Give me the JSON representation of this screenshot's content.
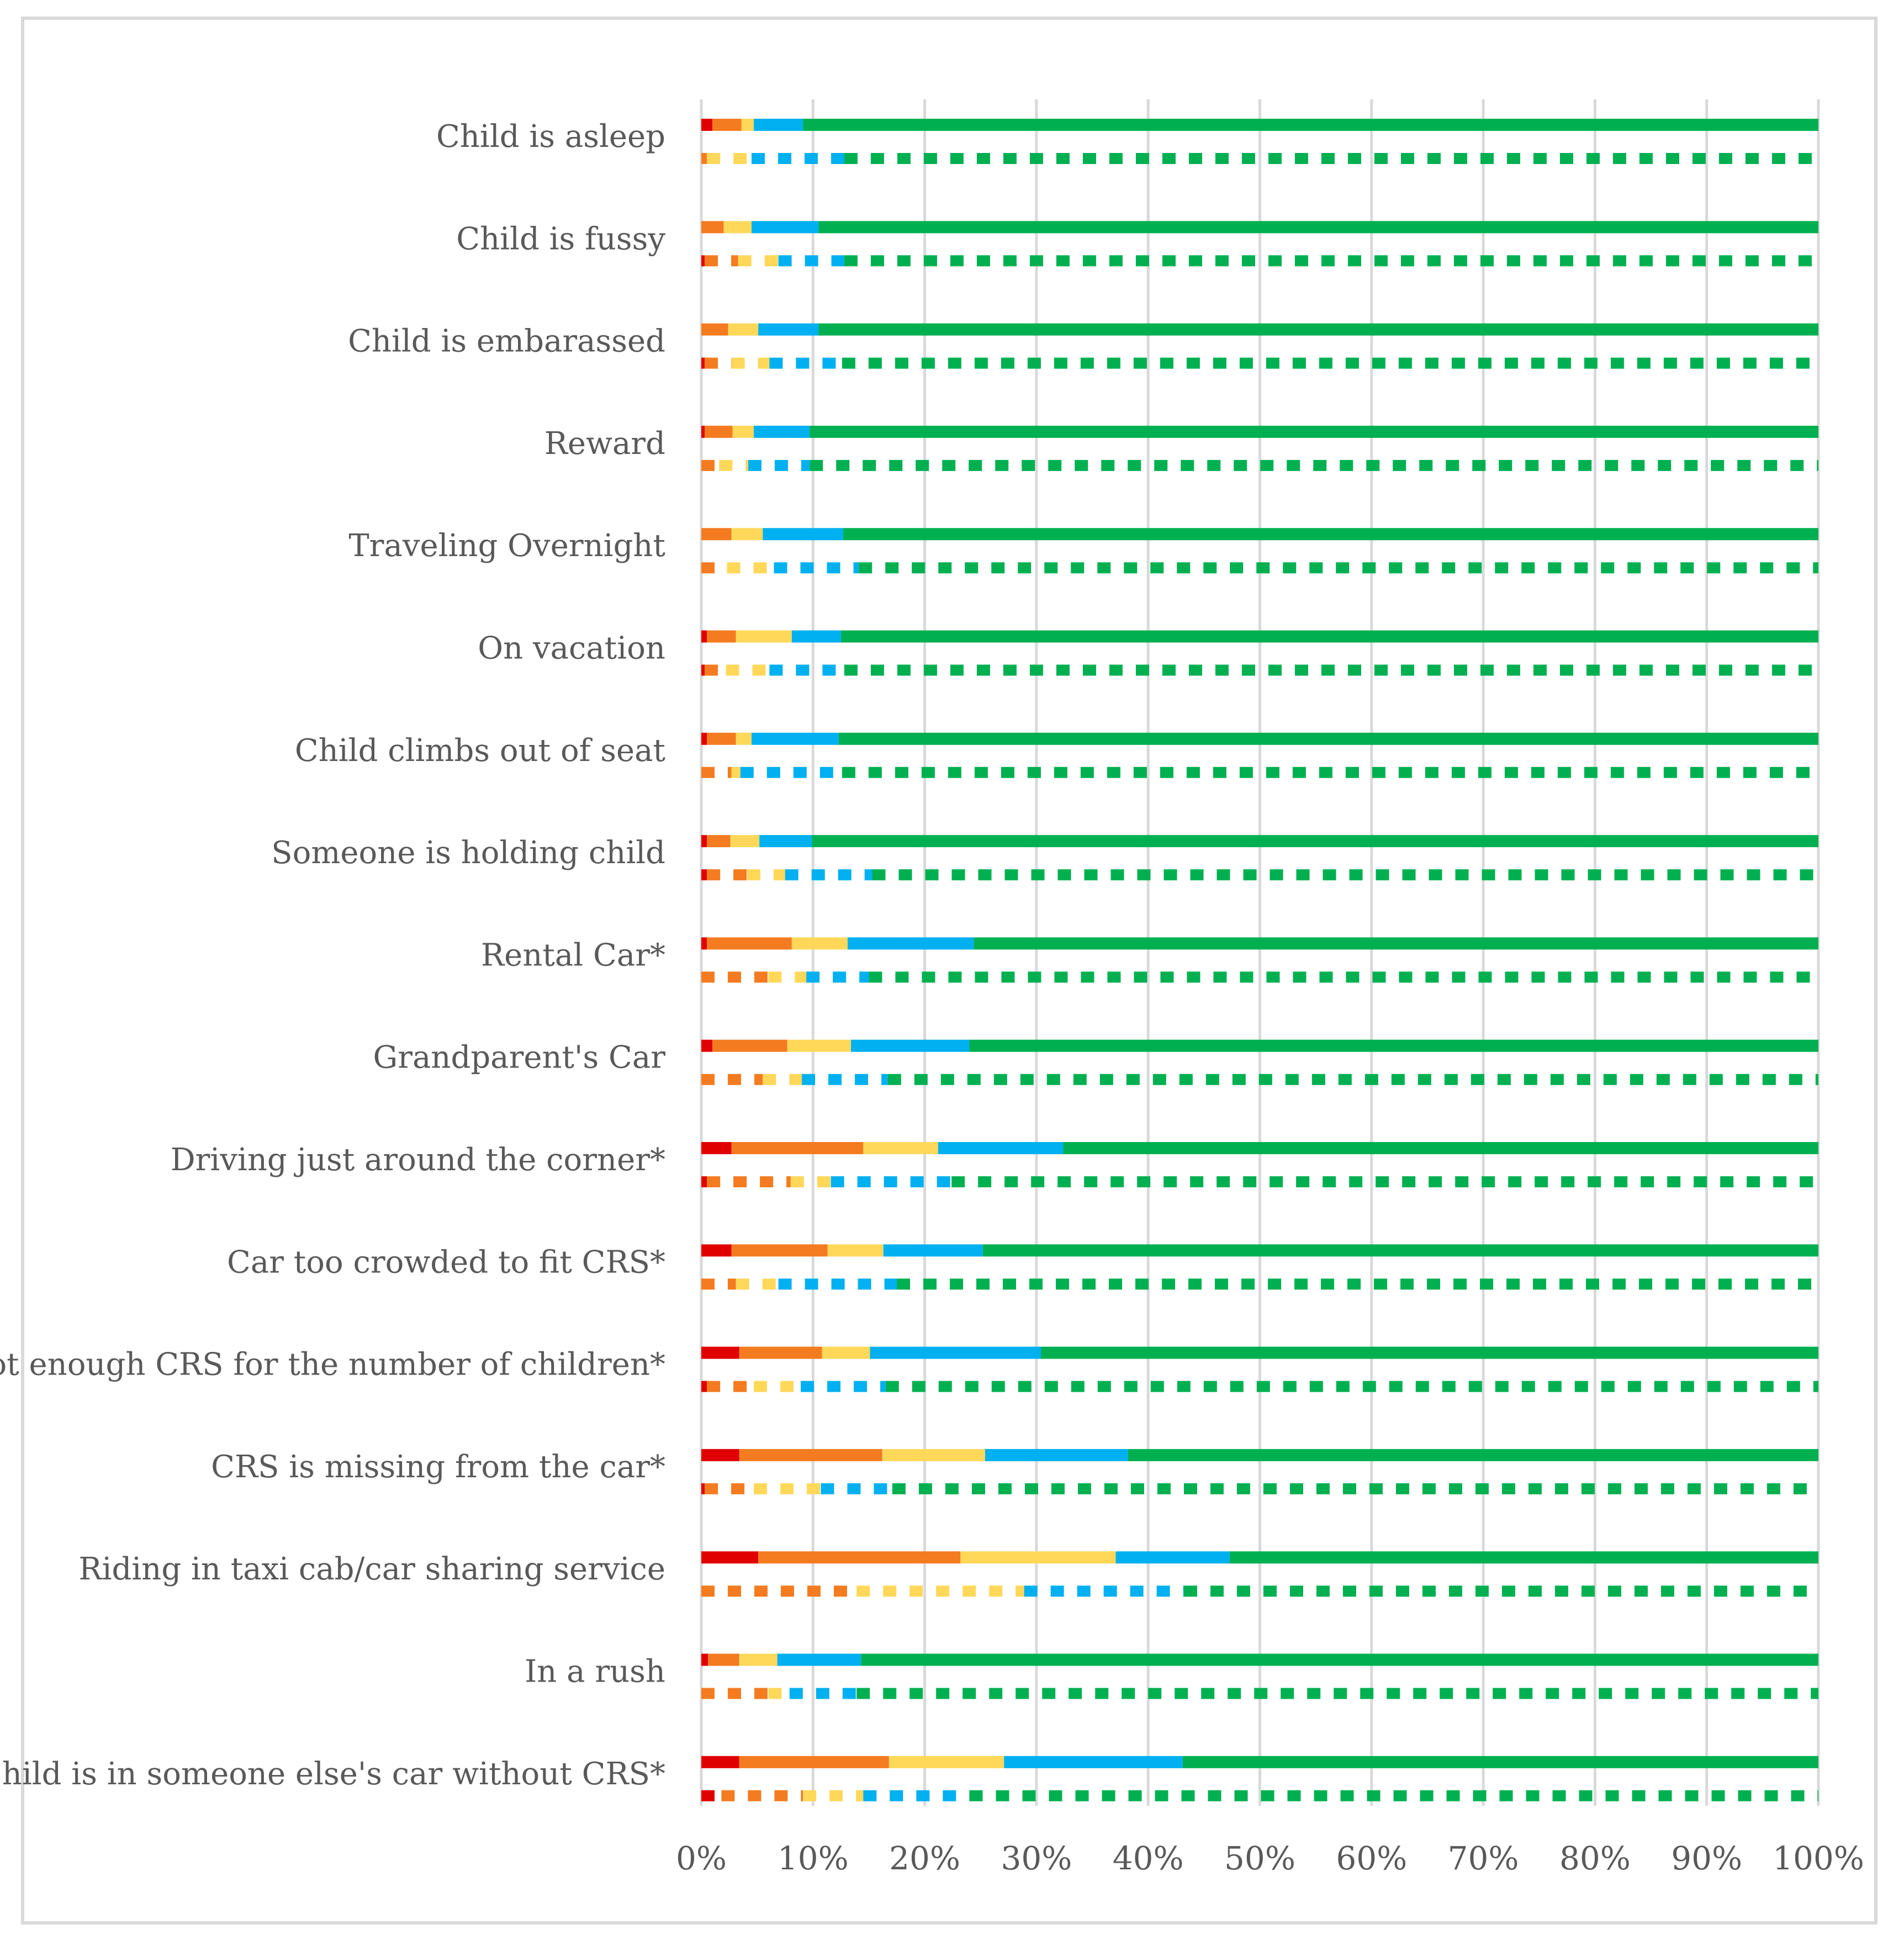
{
  "chart_data": {
    "type": "bar",
    "orientation": "horizontal",
    "stacked": "percent",
    "title": "",
    "xlabel": "",
    "ylabel": "",
    "xlim": [
      0,
      100
    ],
    "x_ticks": [
      "0%",
      "10%",
      "20%",
      "30%",
      "40%",
      "50%",
      "60%",
      "70%",
      "80%",
      "90%",
      "100%"
    ],
    "grid": true,
    "legend": "none",
    "segment_colors": [
      "#e00000",
      "#f47b20",
      "#ffd85a",
      "#00b0f0",
      "#00b050"
    ],
    "bar_styles": [
      "solid",
      "dashed"
    ],
    "categories": [
      "Child is asleep",
      "Child is fussy",
      "Child is embarassed",
      "Reward",
      "Traveling Overnight",
      "On vacation",
      "Child climbs out of seat",
      "Someone is holding child",
      "Rental Car*",
      "Grandparent's Car",
      "Driving just around the corner*",
      "Car too crowded to fit CRS*",
      "Not enough CRS for the number of children*",
      "CRS is missing from the car*",
      "Riding in taxi cab/car sharing service",
      "In a rush",
      "Child is in someone else's car without CRS*"
    ],
    "solid": [
      [
        1.0,
        2.6,
        1.1,
        4.4,
        90.9
      ],
      [
        0.0,
        2.0,
        2.5,
        6.0,
        89.5
      ],
      [
        0.0,
        2.4,
        2.7,
        5.4,
        89.5
      ],
      [
        0.3,
        2.5,
        1.9,
        5.0,
        90.3
      ],
      [
        0.0,
        2.7,
        2.8,
        7.2,
        87.3
      ],
      [
        0.5,
        2.6,
        5.0,
        4.4,
        87.5
      ],
      [
        0.5,
        2.6,
        1.4,
        7.8,
        87.7
      ],
      [
        0.5,
        2.1,
        2.6,
        4.7,
        90.1
      ],
      [
        0.5,
        7.6,
        5.0,
        11.3,
        75.6
      ],
      [
        1.0,
        6.7,
        5.7,
        10.6,
        76.0
      ],
      [
        2.7,
        11.8,
        6.7,
        11.2,
        67.6
      ],
      [
        2.7,
        8.6,
        5.0,
        8.9,
        74.8
      ],
      [
        3.4,
        7.4,
        4.3,
        15.3,
        69.6
      ],
      [
        3.4,
        12.8,
        9.2,
        12.8,
        61.8
      ],
      [
        5.1,
        18.1,
        13.9,
        10.2,
        52.7
      ],
      [
        0.6,
        2.8,
        3.4,
        7.5,
        85.7
      ],
      [
        3.4,
        13.4,
        10.3,
        16.0,
        56.9
      ]
    ],
    "dashed": [
      [
        0.0,
        0.5,
        4.0,
        8.3,
        87.2
      ],
      [
        0.3,
        3.0,
        3.6,
        5.9,
        87.2
      ],
      [
        0.3,
        2.4,
        3.4,
        6.5,
        87.4
      ],
      [
        0.0,
        1.6,
        2.6,
        5.5,
        90.3
      ],
      [
        0.0,
        2.3,
        4.2,
        7.6,
        85.9
      ],
      [
        0.3,
        1.9,
        3.9,
        6.7,
        87.2
      ],
      [
        0.0,
        2.7,
        0.8,
        9.1,
        87.4
      ],
      [
        0.5,
        3.6,
        3.4,
        7.8,
        84.7
      ],
      [
        0.0,
        6.0,
        3.4,
        5.6,
        85.0
      ],
      [
        0.0,
        5.5,
        3.5,
        7.7,
        83.3
      ],
      [
        0.5,
        7.5,
        3.6,
        10.8,
        77.6
      ],
      [
        0.0,
        3.1,
        3.8,
        10.6,
        82.5
      ],
      [
        0.5,
        4.2,
        4.2,
        7.6,
        83.5
      ],
      [
        0.3,
        4.4,
        6.0,
        6.4,
        82.9
      ],
      [
        0.0,
        13.9,
        15.0,
        14.3,
        56.8
      ],
      [
        0.0,
        6.0,
        1.9,
        6.0,
        86.1
      ],
      [
        1.8,
        7.3,
        5.4,
        9.5,
        76.0
      ]
    ]
  }
}
